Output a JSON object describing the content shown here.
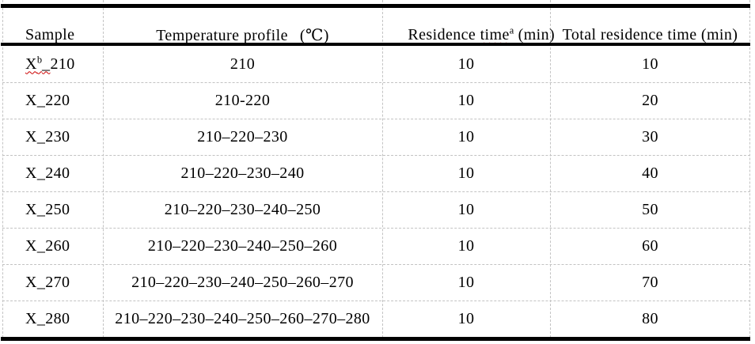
{
  "colors": {
    "background": "#ffffff",
    "text": "#000000",
    "thick_border": "#000000",
    "gridline": "#c3c3c3",
    "spellcheck_squiggle": "#cc0000"
  },
  "table": {
    "header": {
      "sample": "Sample",
      "temp_label": "Temperature profile",
      "temp_unit": "(℃)",
      "residence_pre": "Residence ",
      "residence_wavy": "time",
      "residence_sup": "a",
      "residence_post": " (min)",
      "total": "Total residence time (min)"
    },
    "first_row": {
      "sample_x": "X",
      "sample_sup": "b",
      "sample_underscore": "_",
      "sample_num": "210",
      "temp": "210",
      "res": "10",
      "total": "10"
    },
    "rows": [
      {
        "sample": "X_220",
        "temp": "210-220",
        "res": "10",
        "total": "20"
      },
      {
        "sample": "X_230",
        "temp": "210–220–230",
        "res": "10",
        "total": "30"
      },
      {
        "sample": "X_240",
        "temp": "210–220–230–240",
        "res": "10",
        "total": "40"
      },
      {
        "sample": "X_250",
        "temp": "210–220–230–240–250",
        "res": "10",
        "total": "50"
      },
      {
        "sample": "X_260",
        "temp": "210–220–230–240–250–260",
        "res": "10",
        "total": "60"
      },
      {
        "sample": "X_270",
        "temp": "210–220–230–240–250–260–270",
        "res": "10",
        "total": "70"
      },
      {
        "sample": "X_280",
        "temp": "210–220–230–240–250–260–270–280",
        "res": "10",
        "total": "80"
      }
    ]
  }
}
